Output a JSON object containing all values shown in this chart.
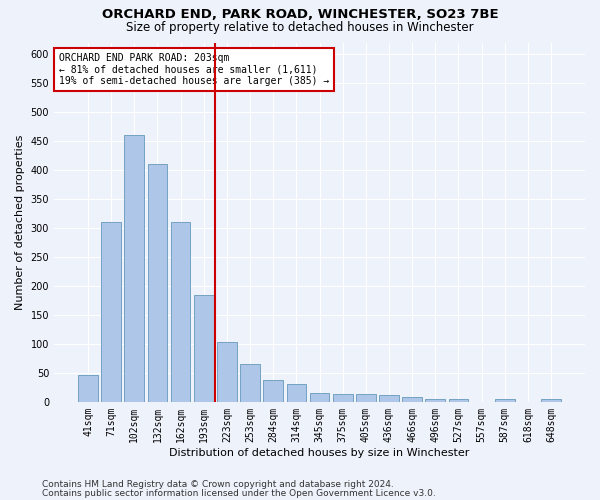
{
  "title": "ORCHARD END, PARK ROAD, WINCHESTER, SO23 7BE",
  "subtitle": "Size of property relative to detached houses in Winchester",
  "xlabel": "Distribution of detached houses by size in Winchester",
  "ylabel": "Number of detached properties",
  "categories": [
    "41sqm",
    "71sqm",
    "102sqm",
    "132sqm",
    "162sqm",
    "193sqm",
    "223sqm",
    "253sqm",
    "284sqm",
    "314sqm",
    "345sqm",
    "375sqm",
    "405sqm",
    "436sqm",
    "466sqm",
    "496sqm",
    "527sqm",
    "557sqm",
    "587sqm",
    "618sqm",
    "648sqm"
  ],
  "values": [
    46,
    311,
    460,
    411,
    311,
    185,
    104,
    65,
    38,
    31,
    15,
    13,
    13,
    11,
    8,
    5,
    5,
    0,
    5,
    0,
    5
  ],
  "bar_color": "#aec6e8",
  "bar_edge_color": "#6699bb",
  "redline_x": 5.5,
  "annotation_title": "ORCHARD END PARK ROAD: 203sqm",
  "annotation_line1": "← 81% of detached houses are smaller (1,611)",
  "annotation_line2": "19% of semi-detached houses are larger (385) →",
  "redline_color": "#cc0000",
  "annotation_box_color": "#ffffff",
  "annotation_box_edge": "#cc0000",
  "ylim": [
    0,
    620
  ],
  "yticks": [
    0,
    50,
    100,
    150,
    200,
    250,
    300,
    350,
    400,
    450,
    500,
    550,
    600
  ],
  "footer1": "Contains HM Land Registry data © Crown copyright and database right 2024.",
  "footer2": "Contains public sector information licensed under the Open Government Licence v3.0.",
  "background_color": "#eef2fb",
  "grid_color": "#ffffff",
  "title_fontsize": 9.5,
  "subtitle_fontsize": 8.5,
  "xlabel_fontsize": 8,
  "ylabel_fontsize": 8,
  "tick_fontsize": 7,
  "annotation_fontsize": 7,
  "footer_fontsize": 6.5
}
